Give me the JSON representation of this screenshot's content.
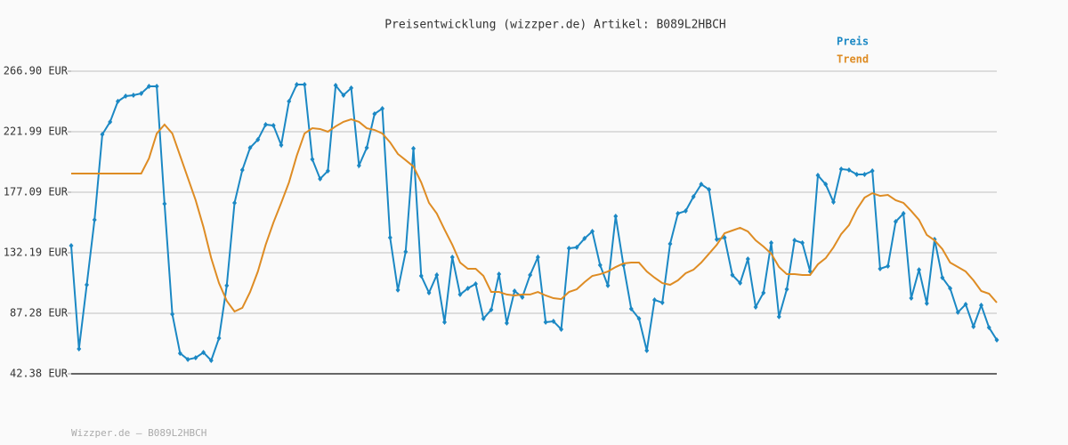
{
  "chart_data": {
    "type": "line",
    "title": "Preisentwicklung (wizzper.de) Artikel: B089L2HBCH",
    "footer": "Wizzper.de – B089L2HBCH",
    "ylim": [
      42.38,
      266.9
    ],
    "yticks": [
      {
        "value": 42.38,
        "label": "42.38 EUR"
      },
      {
        "value": 87.28,
        "label": "87.28 EUR"
      },
      {
        "value": 132.19,
        "label": "132.19 EUR"
      },
      {
        "value": 177.09,
        "label": "177.09 EUR"
      },
      {
        "value": 221.99,
        "label": "221.99 EUR"
      },
      {
        "value": 266.9,
        "label": "266.90 EUR"
      }
    ],
    "grid": true,
    "legend": "top-right",
    "series": [
      {
        "name": "Preis",
        "color": "#1b88c4",
        "marker": "diamond",
        "values": [
          137.5,
          60.9,
          108.4,
          156.6,
          220.0,
          229.3,
          244.5,
          248.4,
          249.1,
          250.4,
          255.7,
          255.7,
          168.5,
          86.6,
          57.6,
          53.0,
          54.3,
          58.2,
          52.3,
          68.8,
          107.8,
          169.2,
          193.6,
          210.1,
          216.1,
          227.3,
          226.6,
          212.1,
          244.5,
          257.0,
          257.0,
          201.5,
          187.0,
          192.9,
          256.3,
          249.1,
          254.4,
          196.9,
          210.1,
          235.2,
          239.2,
          143.4,
          104.5,
          132.9,
          209.5,
          115.0,
          102.5,
          115.7,
          80.7,
          128.9,
          101.2,
          105.8,
          109.1,
          83.3,
          89.9,
          116.3,
          80.0,
          103.8,
          99.2,
          115.7,
          128.9,
          80.7,
          81.3,
          75.4,
          135.5,
          136.2,
          142.8,
          148.0,
          123.0,
          107.8,
          159.3,
          123.0,
          90.6,
          83.3,
          59.6,
          97.2,
          95.2,
          138.8,
          161.3,
          163.2,
          173.8,
          183.0,
          179.1,
          142.1,
          143.4,
          115.7,
          109.7,
          127.6,
          91.9,
          102.5,
          139.5,
          84.7,
          105.1,
          141.4,
          139.5,
          118.3,
          189.6,
          183.0,
          169.8,
          194.3,
          193.6,
          190.3,
          190.3,
          192.9,
          120.3,
          122.3,
          155.3,
          161.3,
          98.5,
          119.6,
          94.6,
          142.1,
          113.7,
          105.8,
          88.0,
          93.9,
          77.4,
          93.2,
          76.7,
          67.5
        ]
      },
      {
        "name": "Trend",
        "color": "#de8c24",
        "values": [
          191.0,
          191.0,
          191.0,
          191.0,
          191.0,
          191.0,
          191.0,
          191.0,
          191.0,
          191.0,
          202.2,
          220.7,
          227.3,
          220.7,
          204.2,
          187.7,
          171.2,
          151.3,
          128.2,
          109.7,
          96.5,
          88.6,
          91.3,
          103.1,
          118.3,
          138.1,
          154.6,
          169.2,
          184.4,
          204.2,
          220.7,
          224.6,
          224.0,
          222.0,
          226.0,
          229.3,
          231.2,
          229.3,
          224.6,
          223.3,
          220.7,
          214.1,
          205.5,
          200.9,
          196.2,
          184.4,
          169.2,
          161.3,
          149.4,
          138.1,
          124.9,
          120.3,
          120.3,
          115.0,
          103.1,
          103.1,
          101.2,
          100.5,
          101.2,
          101.2,
          103.1,
          100.5,
          98.5,
          97.8,
          103.1,
          105.1,
          110.4,
          115.0,
          116.3,
          118.3,
          121.6,
          124.3,
          124.9,
          124.9,
          118.3,
          113.7,
          109.7,
          108.4,
          111.7,
          117.0,
          119.6,
          124.9,
          131.5,
          138.1,
          146.7,
          148.7,
          150.7,
          148.0,
          141.4,
          136.8,
          131.5,
          121.6,
          116.3,
          116.3,
          115.7,
          115.7,
          123.6,
          128.2,
          136.2,
          146.1,
          152.7,
          164.4,
          173.1,
          176.4,
          174.4,
          175.1,
          171.2,
          169.2,
          163.2,
          156.6,
          145.4,
          141.4,
          134.9,
          124.9,
          121.6,
          118.3,
          111.7,
          103.8,
          101.8,
          95.2
        ]
      }
    ]
  }
}
